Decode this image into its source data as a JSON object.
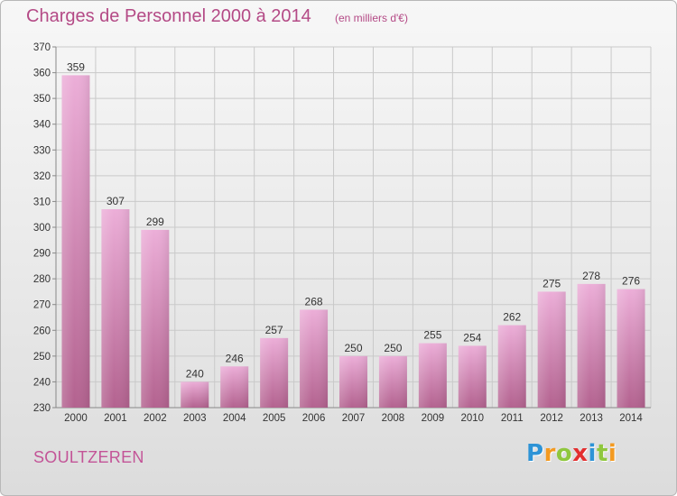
{
  "title": "Charges de Personnel 2000 à 2014",
  "subtitle": "(en milliers d'€)",
  "town": "SOULTZEREN",
  "logo": {
    "letters": [
      "P",
      "r",
      "o",
      "x",
      "i",
      "t",
      "i"
    ],
    "colors": [
      "#2d93d6",
      "#f39a21",
      "#8fc73e",
      "#e32f2f",
      "#2d93d6",
      "#8fc73e",
      "#f39a21"
    ]
  },
  "colors": {
    "bar_top": "#ecaed8",
    "bar_bottom": "#b3628f",
    "title": "#b44a86",
    "grid": "#c9c9c9"
  },
  "chart_data": {
    "type": "bar",
    "title": "Charges de Personnel 2000 à 2014",
    "subtitle": "(en milliers d'€)",
    "categories": [
      "2000",
      "2001",
      "2002",
      "2003",
      "2004",
      "2005",
      "2006",
      "2007",
      "2008",
      "2009",
      "2010",
      "2011",
      "2012",
      "2013",
      "2014"
    ],
    "values": [
      359,
      307,
      299,
      240,
      246,
      257,
      268,
      250,
      250,
      255,
      254,
      262,
      275,
      278,
      276
    ],
    "ylim": [
      230,
      370
    ],
    "yticks": [
      230,
      240,
      250,
      260,
      270,
      280,
      290,
      300,
      310,
      320,
      330,
      340,
      350,
      360,
      370
    ],
    "grid": true,
    "data_labels": true
  }
}
